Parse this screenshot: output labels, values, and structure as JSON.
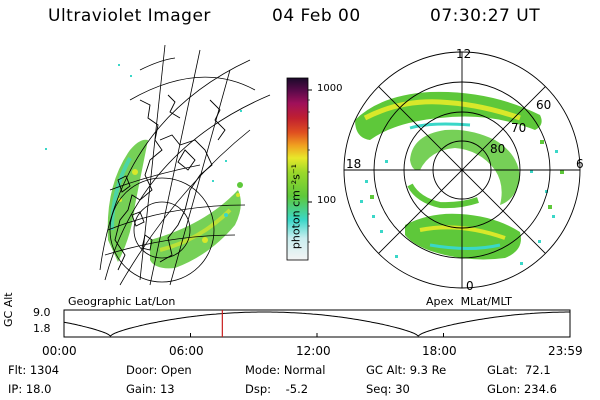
{
  "header": {
    "instrument": "Ultraviolet Imager",
    "date": "04 Feb 00",
    "time": "07:30:27 UT"
  },
  "colorbar": {
    "label": "photon cm⁻²s⁻¹",
    "ticks": [
      "1000",
      "100"
    ]
  },
  "geo_panel": {
    "caption": "Geographic Lat/Lon"
  },
  "polar_panel": {
    "caption": "Apex  MLat/MLT",
    "mlt_labels": [
      "12",
      "18",
      "6",
      "0"
    ],
    "mlat_labels": [
      "60",
      "70",
      "80"
    ]
  },
  "orbit_plot": {
    "ylabel": "GC Alt",
    "y_ticks": [
      "9.0",
      "1.8"
    ],
    "x_ticks": [
      "00:00",
      "06:00",
      "12:00",
      "18:00",
      "23:59"
    ],
    "current_time_hours": 7.51
  },
  "info": {
    "flt": "Flt: 1304",
    "door": "Door: Open",
    "mode": "Mode: Normal",
    "gcalt": "GC Alt: 9.3 Re",
    "glat": "GLat:  72.1",
    "ip": "IP: 18.0",
    "gain": "Gain: 13",
    "dsp": "Dsp:    -5.2",
    "seq": "Seq: 30",
    "glon": "GLon: 234.6"
  },
  "colors": {
    "aurora_green": "#5ec83a",
    "aurora_yellow": "#d8e82a",
    "aurora_cyan": "#3ad7c8",
    "marker_red": "#c81e1e"
  }
}
